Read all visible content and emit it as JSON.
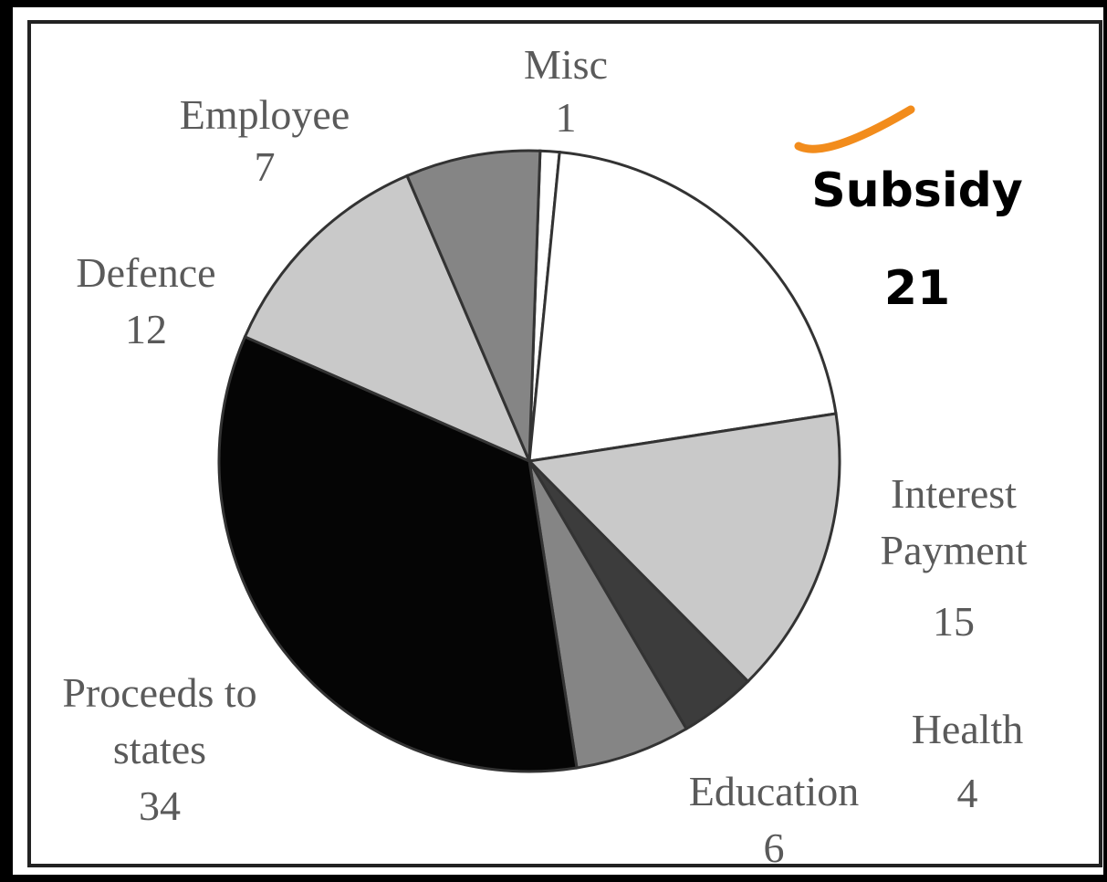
{
  "chart_data": {
    "type": "pie",
    "categories": [
      "Misc",
      "Subsidy",
      "Interest Payment",
      "Health",
      "Education",
      "Proceeds to states",
      "Defence",
      "Employee"
    ],
    "values": [
      1,
      21,
      15,
      4,
      6,
      34,
      12,
      7
    ],
    "colors": [
      "#ffffff",
      "#ffffff",
      "#c9c9c9",
      "#3c3c3c",
      "#858585",
      "#050505",
      "#c9c9c9",
      "#858585"
    ]
  }
}
